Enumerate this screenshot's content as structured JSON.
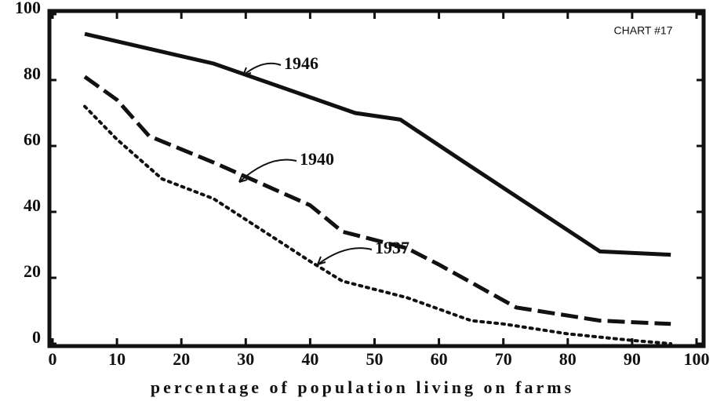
{
  "chart_data": {
    "type": "line",
    "annotation": "CHART #17",
    "x_label": "percentage of population living on farms",
    "xlim": [
      0,
      100
    ],
    "xticks": [
      0,
      10,
      20,
      30,
      40,
      50,
      60,
      70,
      80,
      90,
      100
    ],
    "ylim": [
      0,
      100
    ],
    "yticks": [
      0,
      20,
      40,
      60,
      80,
      100
    ],
    "grid": false,
    "series": [
      {
        "name": "1946",
        "color": "#111111",
        "style": "solid",
        "x": [
          5,
          25,
          47,
          54,
          64,
          85,
          96
        ],
        "values": [
          94,
          85,
          70,
          68,
          55,
          28,
          27
        ]
      },
      {
        "name": "1940",
        "color": "#111111",
        "style": "dashed",
        "x": [
          5,
          10,
          15,
          25,
          40,
          45,
          55,
          60,
          72,
          85,
          96
        ],
        "values": [
          81,
          74,
          63,
          55,
          42,
          34,
          29,
          24,
          11,
          7,
          6
        ]
      },
      {
        "name": "1937",
        "color": "#111111",
        "style": "dotted",
        "x": [
          5,
          10,
          17,
          25,
          40,
          45,
          55,
          65,
          70,
          80,
          90,
          96
        ],
        "values": [
          72,
          62,
          50,
          44,
          25,
          19,
          14,
          7,
          6,
          3,
          1,
          0
        ]
      }
    ]
  }
}
